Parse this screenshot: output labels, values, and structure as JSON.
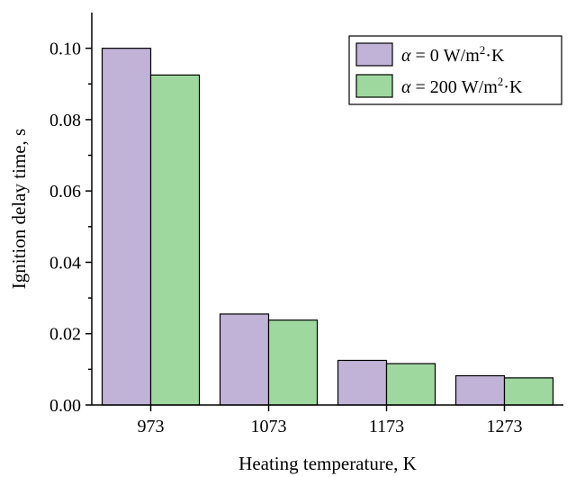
{
  "chart_data": {
    "type": "bar",
    "categories": [
      "973",
      "1073",
      "1173",
      "1273"
    ],
    "series": [
      {
        "name_prefix": "α",
        "name_suffix": " = 0 W/m",
        "name_sup": "2",
        "name_tail": "·K",
        "values": [
          0.1,
          0.0255,
          0.0125,
          0.0082
        ],
        "color": "#c1b3d8"
      },
      {
        "name_prefix": "α",
        "name_suffix": " = 200 W/m",
        "name_sup": "2",
        "name_tail": "·K",
        "values": [
          0.0925,
          0.0238,
          0.0116,
          0.0076
        ],
        "color": "#9fd89f"
      }
    ],
    "xlabel": "Heating temperature, K",
    "ylabel": "Ignition delay time, s",
    "ylim": [
      0,
      0.11
    ],
    "yticks": [
      "0.00",
      "0.02",
      "0.04",
      "0.06",
      "0.08",
      "0.10"
    ],
    "ytick_values": [
      0,
      0.02,
      0.04,
      0.06,
      0.08,
      0.1
    ],
    "grid": false,
    "legend_position": "top-right"
  }
}
